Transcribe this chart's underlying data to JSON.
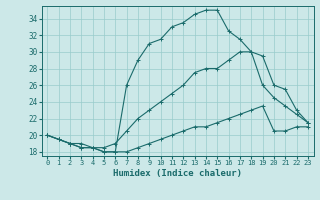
{
  "xlabel": "Humidex (Indice chaleur)",
  "xlim": [
    -0.5,
    23.5
  ],
  "ylim": [
    17.5,
    35.5
  ],
  "yticks": [
    18,
    20,
    22,
    24,
    26,
    28,
    30,
    32,
    34
  ],
  "xticks": [
    0,
    1,
    2,
    3,
    4,
    5,
    6,
    7,
    8,
    9,
    10,
    11,
    12,
    13,
    14,
    15,
    16,
    17,
    18,
    19,
    20,
    21,
    22,
    23
  ],
  "bg_color": "#cce8e8",
  "grid_color": "#99cccc",
  "line_color": "#1a6b6b",
  "line1_x": [
    0,
    1,
    2,
    3,
    4,
    5,
    6,
    7,
    8,
    9,
    10,
    11,
    12,
    13,
    14,
    15,
    16,
    17,
    18,
    19,
    20,
    21,
    22,
    23
  ],
  "line1_y": [
    20.0,
    19.5,
    19.0,
    18.5,
    18.5,
    18.0,
    18.0,
    18.0,
    18.5,
    19.0,
    19.5,
    20.0,
    20.5,
    21.0,
    21.0,
    21.5,
    22.0,
    22.5,
    23.0,
    23.5,
    20.5,
    20.5,
    21.0,
    21.0
  ],
  "line2_x": [
    0,
    1,
    2,
    3,
    4,
    5,
    6,
    7,
    8,
    9,
    10,
    11,
    12,
    13,
    14,
    15,
    16,
    17,
    18,
    19,
    20,
    21,
    22,
    23
  ],
  "line2_y": [
    20.0,
    19.5,
    19.0,
    19.0,
    18.5,
    18.5,
    19.0,
    20.5,
    22.0,
    23.0,
    24.0,
    25.0,
    26.0,
    27.5,
    28.0,
    28.0,
    29.0,
    30.0,
    30.0,
    26.0,
    24.5,
    23.5,
    22.5,
    21.5
  ],
  "line3_x": [
    0,
    1,
    2,
    3,
    4,
    5,
    6,
    7,
    8,
    9,
    10,
    11,
    12,
    13,
    14,
    15,
    16,
    17,
    18,
    19,
    20,
    21,
    22,
    23
  ],
  "line3_y": [
    20.0,
    19.5,
    19.0,
    18.5,
    18.5,
    18.0,
    18.0,
    26.0,
    29.0,
    31.0,
    31.5,
    33.0,
    33.5,
    34.5,
    35.0,
    35.0,
    32.5,
    31.5,
    30.0,
    29.5,
    26.0,
    25.5,
    23.0,
    21.5
  ]
}
